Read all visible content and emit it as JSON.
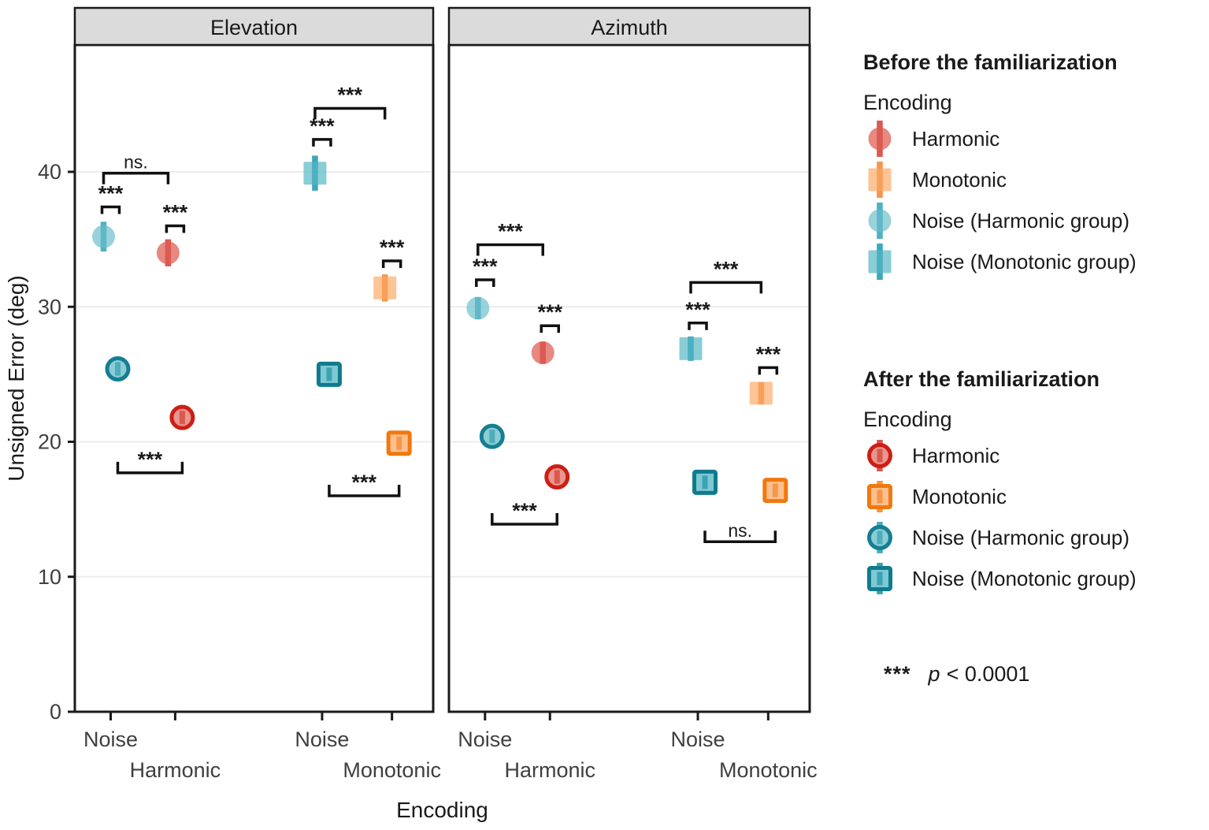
{
  "chart_data": {
    "type": "pointrange",
    "title": "",
    "xlabel": "Encoding",
    "ylabel": "Unsigned Error (deg)",
    "ylim": [
      0,
      49
    ],
    "yticks": [
      0,
      10,
      20,
      30,
      40
    ],
    "grid": "horizontal-major",
    "legend_position": "right",
    "facets": [
      "Elevation",
      "Azimuth"
    ],
    "x_slot_labels": [
      {
        "label": "Noise",
        "row": 1
      },
      {
        "label": "Harmonic",
        "row": 2
      },
      {
        "label": "Noise",
        "row": 1
      },
      {
        "label": "Monotonic",
        "row": 2
      }
    ],
    "panels": [
      {
        "title": "Elevation",
        "points": [
          {
            "slot": 0,
            "series": "noise_harmonic",
            "phase": "before",
            "value": 35.2,
            "error": 1.1
          },
          {
            "slot": 1,
            "series": "harmonic",
            "phase": "before",
            "value": 34.0,
            "error": 1.0
          },
          {
            "slot": 2,
            "series": "noise_monotonic",
            "phase": "before",
            "value": 39.9,
            "error": 1.3
          },
          {
            "slot": 3,
            "series": "monotonic",
            "phase": "before",
            "value": 31.4,
            "error": 1.0
          },
          {
            "slot": 0,
            "series": "noise_harmonic",
            "phase": "after",
            "value": 25.4,
            "error": 0.8
          },
          {
            "slot": 1,
            "series": "harmonic",
            "phase": "after",
            "value": 21.8,
            "error": 0.8
          },
          {
            "slot": 2,
            "series": "noise_monotonic",
            "phase": "after",
            "value": 25.0,
            "error": 0.8
          },
          {
            "slot": 3,
            "series": "monotonic",
            "phase": "after",
            "value": 19.9,
            "error": 0.8
          }
        ],
        "annotations": [
          {
            "kind": "pair",
            "slots": [
              0
            ],
            "y": 37.4,
            "label": "***"
          },
          {
            "kind": "pair",
            "slots": [
              1
            ],
            "y": 36.0,
            "label": "***"
          },
          {
            "kind": "pair",
            "slots": [
              2
            ],
            "y": 42.4,
            "label": "***"
          },
          {
            "kind": "pair",
            "slots": [
              3
            ],
            "y": 33.4,
            "label": "***"
          },
          {
            "kind": "span",
            "slots": [
              0,
              1
            ],
            "y": 39.9,
            "label": "ns."
          },
          {
            "kind": "span",
            "slots": [
              2,
              3
            ],
            "y": 44.7,
            "label": "***"
          },
          {
            "kind": "span_bottom",
            "slots": [
              0,
              1
            ],
            "y": 17.7,
            "label": "***"
          },
          {
            "kind": "span_bottom",
            "slots": [
              2,
              3
            ],
            "y": 16.0,
            "label": "***"
          }
        ]
      },
      {
        "title": "Azimuth",
        "points": [
          {
            "slot": 0,
            "series": "noise_harmonic",
            "phase": "before",
            "value": 29.9,
            "error": 0.8
          },
          {
            "slot": 1,
            "series": "harmonic",
            "phase": "before",
            "value": 26.6,
            "error": 0.8
          },
          {
            "slot": 2,
            "series": "noise_monotonic",
            "phase": "before",
            "value": 26.9,
            "error": 0.9
          },
          {
            "slot": 3,
            "series": "monotonic",
            "phase": "before",
            "value": 23.6,
            "error": 0.8
          },
          {
            "slot": 0,
            "series": "noise_harmonic",
            "phase": "after",
            "value": 20.4,
            "error": 0.7
          },
          {
            "slot": 1,
            "series": "harmonic",
            "phase": "after",
            "value": 17.4,
            "error": 0.7
          },
          {
            "slot": 2,
            "series": "noise_monotonic",
            "phase": "after",
            "value": 17.0,
            "error": 0.8
          },
          {
            "slot": 3,
            "series": "monotonic",
            "phase": "after",
            "value": 16.4,
            "error": 0.7
          }
        ],
        "annotations": [
          {
            "kind": "span",
            "slots": [
              0,
              1
            ],
            "y": 34.6,
            "label": "***"
          },
          {
            "kind": "pair",
            "slots": [
              0
            ],
            "y": 32.0,
            "label": "***"
          },
          {
            "kind": "pair",
            "slots": [
              1
            ],
            "y": 28.6,
            "label": "***"
          },
          {
            "kind": "span",
            "slots": [
              2,
              3
            ],
            "y": 31.8,
            "label": "***"
          },
          {
            "kind": "pair",
            "slots": [
              2
            ],
            "y": 28.8,
            "label": "***"
          },
          {
            "kind": "pair",
            "slots": [
              3
            ],
            "y": 25.5,
            "label": "***"
          },
          {
            "kind": "span_bottom",
            "slots": [
              0,
              1
            ],
            "y": 13.9,
            "label": "***"
          },
          {
            "kind": "span_bottom",
            "slots": [
              2,
              3
            ],
            "y": 12.6,
            "label": "ns."
          }
        ]
      }
    ]
  },
  "styles": {
    "header_fill": "#DBDBDB",
    "panel_border": "#1a1a1a",
    "grid_color": "#ECECEC",
    "bracket_color": "#111111",
    "tick_label_color": "#3F3F3F",
    "series": {
      "harmonic": {
        "shape": "circle",
        "before": {
          "fill": "#E0675E",
          "bar": "#D44A40"
        },
        "after": {
          "stroke": "#CB1F15",
          "fill": "#E9968E",
          "bar": "#D8554B"
        }
      },
      "monotonic": {
        "shape": "square",
        "before": {
          "fill": "#FCB477",
          "bar": "#F68B3C"
        },
        "after": {
          "stroke": "#F1780F",
          "fill": "#FCC08F",
          "bar": "#F79445"
        }
      },
      "noise_harmonic": {
        "shape": "circle",
        "before": {
          "fill": "#7CC5D1",
          "bar": "#3FA9BE"
        },
        "after": {
          "stroke": "#157E92",
          "fill": "#8BCCD5",
          "bar": "#4AACBC"
        }
      },
      "noise_monotonic": {
        "shape": "square",
        "before": {
          "fill": "#68BFCB",
          "bar": "#2D9FB3"
        },
        "after": {
          "stroke": "#0F7B8E",
          "fill": "#7FC8D2",
          "bar": "#37A2B4"
        }
      }
    }
  },
  "legend": {
    "before": {
      "title": "Before the familiarization",
      "subtitle": "Encoding",
      "items": [
        {
          "series": "harmonic",
          "label": "Harmonic"
        },
        {
          "series": "monotonic",
          "label": "Monotonic"
        },
        {
          "series": "noise_harmonic",
          "label": "Noise (Harmonic group)"
        },
        {
          "series": "noise_monotonic",
          "label": "Noise (Monotonic group)"
        }
      ]
    },
    "after": {
      "title": "After the familiarization",
      "subtitle": "Encoding",
      "items": [
        {
          "series": "harmonic",
          "label": "Harmonic"
        },
        {
          "series": "monotonic",
          "label": "Monotonic"
        },
        {
          "series": "noise_harmonic",
          "label": "Noise (Harmonic group)"
        },
        {
          "series": "noise_monotonic",
          "label": "Noise (Monotonic group)"
        }
      ]
    }
  },
  "note": {
    "stars": "***",
    "p": "p",
    "comparison": "< 0.0001"
  }
}
